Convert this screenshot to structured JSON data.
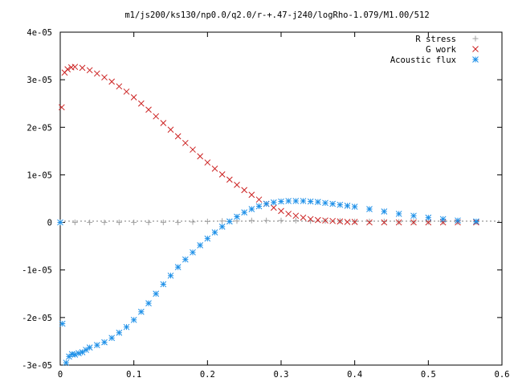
{
  "chart_data": {
    "type": "scatter",
    "title": "m1/js200/ks130/np0.0/q2.0/r-+.47-j240/logRho-1.079/M1.00/512",
    "xlabel": "",
    "ylabel": "",
    "xlim": [
      0,
      0.6
    ],
    "ylim": [
      -3e-05,
      4e-05
    ],
    "x_ticks": [
      {
        "value": 0,
        "label": "0"
      },
      {
        "value": 0.1,
        "label": "0.1"
      },
      {
        "value": 0.2,
        "label": "0.2"
      },
      {
        "value": 0.3,
        "label": "0.3"
      },
      {
        "value": 0.4,
        "label": "0.4"
      },
      {
        "value": 0.5,
        "label": "0.5"
      },
      {
        "value": 0.6,
        "label": "0.6"
      }
    ],
    "y_ticks": [
      {
        "value": -3e-05,
        "label": "-3e-05"
      },
      {
        "value": -2e-05,
        "label": "-2e-05"
      },
      {
        "value": -1e-05,
        "label": "-1e-05"
      },
      {
        "value": 0,
        "label": "0"
      },
      {
        "value": 1e-05,
        "label": "1e-05"
      },
      {
        "value": 2e-05,
        "label": "2e-05"
      },
      {
        "value": 3e-05,
        "label": "3e-05"
      },
      {
        "value": 4e-05,
        "label": "4e-05"
      }
    ],
    "grid": false,
    "legend": "top-right",
    "series": [
      {
        "name": "R stress",
        "marker": "plus",
        "color": "#a0a0a0",
        "x": [
          0.0,
          0.02,
          0.04,
          0.06,
          0.08,
          0.1,
          0.12,
          0.14,
          0.16,
          0.18,
          0.2,
          0.22,
          0.24,
          0.26,
          0.28,
          0.3,
          0.32,
          0.34,
          0.36,
          0.38,
          0.4,
          0.42,
          0.44,
          0.46,
          0.48,
          0.5,
          0.52,
          0.54,
          0.565
        ],
        "y": [
          0,
          0,
          0,
          0,
          0,
          0,
          0,
          0,
          0,
          1e-07,
          2e-07,
          3e-07,
          3e-07,
          4e-07,
          4e-07,
          4e-07,
          4e-07,
          3e-07,
          3e-07,
          3e-07,
          2e-07,
          2e-07,
          2e-07,
          1e-07,
          1e-07,
          1e-07,
          1e-07,
          1e-07,
          1e-07
        ]
      },
      {
        "name": "G work",
        "marker": "cross",
        "color": "#cc2222",
        "x": [
          0.002,
          0.006,
          0.01,
          0.015,
          0.02,
          0.03,
          0.04,
          0.05,
          0.06,
          0.07,
          0.08,
          0.09,
          0.1,
          0.11,
          0.12,
          0.13,
          0.14,
          0.15,
          0.16,
          0.17,
          0.18,
          0.19,
          0.2,
          0.21,
          0.22,
          0.23,
          0.24,
          0.25,
          0.26,
          0.27,
          0.28,
          0.29,
          0.3,
          0.31,
          0.32,
          0.33,
          0.34,
          0.35,
          0.36,
          0.37,
          0.38,
          0.39,
          0.4,
          0.42,
          0.44,
          0.46,
          0.48,
          0.5,
          0.52,
          0.54,
          0.565
        ],
        "y": [
          2.42e-05,
          3.15e-05,
          3.22e-05,
          3.26e-05,
          3.27e-05,
          3.25e-05,
          3.2e-05,
          3.13e-05,
          3.05e-05,
          2.96e-05,
          2.86e-05,
          2.75e-05,
          2.63e-05,
          2.5e-05,
          2.37e-05,
          2.23e-05,
          2.09e-05,
          1.95e-05,
          1.81e-05,
          1.67e-05,
          1.53e-05,
          1.39e-05,
          1.26e-05,
          1.13e-05,
          1.01e-05,
          9e-06,
          7.9e-06,
          6.8e-06,
          5.8e-06,
          4.8e-06,
          3.9e-06,
          3.1e-06,
          2.4e-06,
          1.8e-06,
          1.4e-06,
          1e-06,
          7e-07,
          5e-07,
          4e-07,
          3e-07,
          2e-07,
          1e-07,
          1e-07,
          0,
          0,
          0,
          0,
          0,
          0,
          0,
          0
        ]
      },
      {
        "name": "Acoustic flux",
        "marker": "star",
        "color": "#1e90e8",
        "x": [
          0.0,
          0.003,
          0.008,
          0.012,
          0.016,
          0.02,
          0.025,
          0.03,
          0.035,
          0.04,
          0.05,
          0.06,
          0.07,
          0.08,
          0.09,
          0.1,
          0.11,
          0.12,
          0.13,
          0.14,
          0.15,
          0.16,
          0.17,
          0.18,
          0.19,
          0.2,
          0.21,
          0.22,
          0.23,
          0.24,
          0.25,
          0.26,
          0.27,
          0.28,
          0.29,
          0.3,
          0.31,
          0.32,
          0.33,
          0.34,
          0.35,
          0.36,
          0.37,
          0.38,
          0.39,
          0.4,
          0.42,
          0.44,
          0.46,
          0.48,
          0.5,
          0.52,
          0.54,
          0.565
        ],
        "y": [
          0,
          -2.13e-05,
          -2.95e-05,
          -2.82e-05,
          -2.77e-05,
          -2.78e-05,
          -2.75e-05,
          -2.73e-05,
          -2.68e-05,
          -2.63e-05,
          -2.58e-05,
          -2.52e-05,
          -2.43e-05,
          -2.32e-05,
          -2.2e-05,
          -2.05e-05,
          -1.88e-05,
          -1.7e-05,
          -1.5e-05,
          -1.3e-05,
          -1.12e-05,
          -9.4e-06,
          -7.8e-06,
          -6.3e-06,
          -4.8e-06,
          -3.4e-06,
          -2.1e-06,
          -9e-07,
          2e-07,
          1.2e-06,
          2.1e-06,
          2.8e-06,
          3.4e-06,
          3.9e-06,
          4.2e-06,
          4.4e-06,
          4.5e-06,
          4.5e-06,
          4.5e-06,
          4.4e-06,
          4.3e-06,
          4.1e-06,
          3.9e-06,
          3.7e-06,
          3.5e-06,
          3.3e-06,
          2.8e-06,
          2.3e-06,
          1.8e-06,
          1.4e-06,
          1e-06,
          7e-07,
          4e-07,
          2e-07
        ]
      }
    ]
  }
}
